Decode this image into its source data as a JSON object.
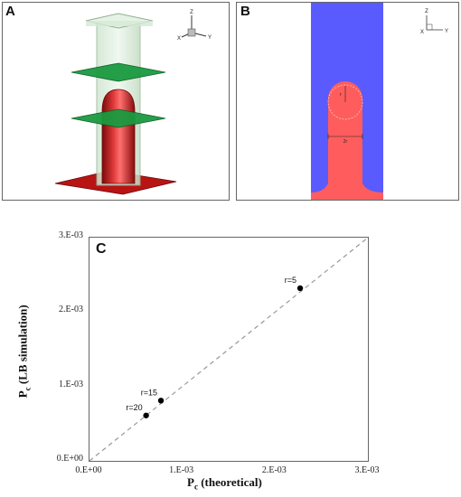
{
  "panels": {
    "a": {
      "letter": "A",
      "axes": {
        "z": "Z",
        "x": "X",
        "y": "Y"
      }
    },
    "b": {
      "letter": "B",
      "axes": {
        "z": "Z",
        "x": "X",
        "y": "Y"
      },
      "radius_label": "r",
      "diameter_label": "2r"
    },
    "c": {
      "letter": "C"
    }
  },
  "colors": {
    "fluid_blue": "#5a5bff",
    "fluid_red": "#ff5d5d",
    "cylinder_red": "#c81a1a",
    "plane_green": "#1a8a3a"
  },
  "chart_data": {
    "type": "scatter",
    "xlabel_main": "P",
    "xlabel_sub": "c",
    "xlabel_rest": " (theoretical)",
    "ylabel_main": "P",
    "ylabel_sub": "c",
    "ylabel_rest": " (LB simulation)",
    "xlim": [
      0,
      0.003
    ],
    "ylim": [
      0,
      0.003
    ],
    "xticks": [
      "0.E+00",
      "1.E-03",
      "2.E-03",
      "3.E-03"
    ],
    "yticks": [
      "0.E+00",
      "1.E-03",
      "2.E-03",
      "3.E-03"
    ],
    "reference_line": "y = x (dashed)",
    "points": [
      {
        "label": "r=5",
        "x": 0.00227,
        "y": 0.00232
      },
      {
        "label": "r=15",
        "x": 0.00077,
        "y": 0.00081
      },
      {
        "label": "r=20",
        "x": 0.00061,
        "y": 0.00061
      }
    ],
    "grid": false
  }
}
